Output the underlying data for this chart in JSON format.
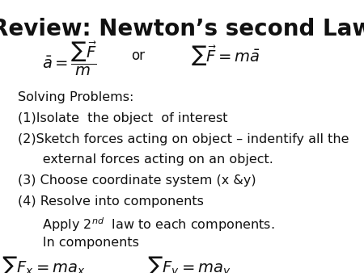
{
  "title": "Review: Newton’s second Law",
  "title_fontsize": 20,
  "title_fontweight": "bold",
  "background_color": "#ffffff",
  "text_color": "#111111",
  "font_family": "DejaVu Sans",
  "body_fontsize": 11.5,
  "formula_fontsize": 14,
  "lines": [
    "Solving Problems:",
    "(1)Isolate  the object  of interest",
    "(2)Sketch forces acting on object – indentify all the",
    "      external forces acting on an object.",
    "(3) Choose coordinate system (x &y)",
    "(4) Resolve into components",
    "      Apply 2$^{nd}$  law to each components.",
    "      In components"
  ]
}
